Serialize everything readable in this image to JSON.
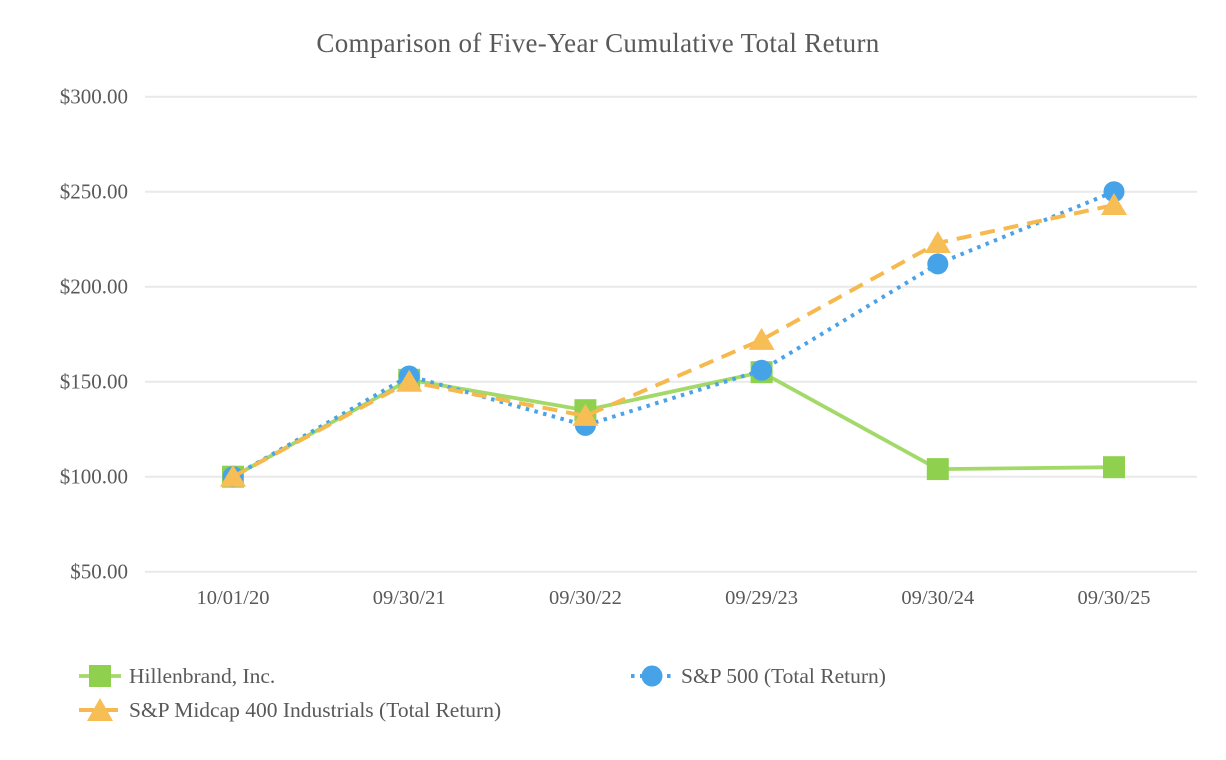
{
  "chart_data": {
    "type": "line",
    "title": "Comparison of Five-Year Cumulative Total Return",
    "categories": [
      "10/01/20",
      "09/30/21",
      "09/30/22",
      "09/29/23",
      "09/30/24",
      "09/30/25"
    ],
    "series": [
      {
        "name": "Hillenbrand, Inc.",
        "values": [
          100,
          151,
          135,
          155,
          104,
          105
        ],
        "marker": "square",
        "line_style": "solid",
        "marker_color": "#8FD14F",
        "line_color": "#A2D969"
      },
      {
        "name": "S&P 500 (Total Return)",
        "values": [
          100,
          153,
          127,
          156,
          212,
          250
        ],
        "marker": "circle",
        "line_style": "dotted",
        "marker_color": "#47A3E8",
        "line_color": "#4BA2E8"
      },
      {
        "name": "S&P Midcap 400 Industrials (Total Return)",
        "values": [
          100,
          150,
          132,
          172,
          223,
          243
        ],
        "marker": "triangle",
        "line_style": "dashed",
        "marker_color": "#F8BE56",
        "line_color": "#F5B94F"
      }
    ],
    "y_axis": {
      "min": 50,
      "max": 300,
      "tick_step": 50,
      "tick_labels": [
        "$50.00",
        "$100.00",
        "$150.00",
        "$200.00",
        "$250.00",
        "$300.00"
      ]
    },
    "x_axis": {
      "tick_labels": [
        "10/01/20",
        "09/30/21",
        "09/30/22",
        "09/29/23",
        "09/30/24",
        "09/30/25"
      ]
    },
    "grid": "horizontal",
    "legend_position": "bottom",
    "style": {
      "grid_color": "#E9E9E9",
      "text_color": "#595959",
      "background": "#FFFFFF"
    }
  }
}
